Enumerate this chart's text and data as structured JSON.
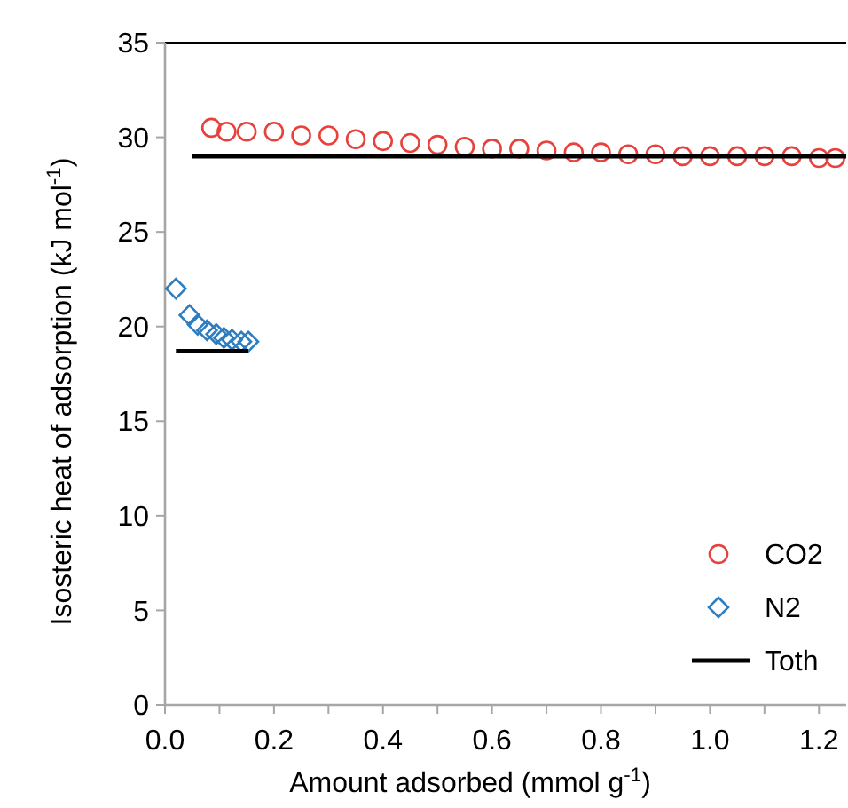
{
  "chart_data": {
    "type": "scatter",
    "xlabel": "Amount adsorbed (mmol g$^{-1}$)",
    "ylabel": "Isosteric heat of adsorption (kJ mol$^{-1}$)",
    "xlim": [
      0,
      1.25
    ],
    "ylim": [
      0,
      35
    ],
    "xticks": [
      {
        "value": 0,
        "label": "0.0"
      },
      {
        "value": 0.1,
        "label": null
      },
      {
        "value": 0.2,
        "label": "0.2"
      },
      {
        "value": 0.3,
        "label": null
      },
      {
        "value": 0.4,
        "label": "0.4"
      },
      {
        "value": 0.5,
        "label": null
      },
      {
        "value": 0.6,
        "label": "0.6"
      },
      {
        "value": 0.7,
        "label": null
      },
      {
        "value": 0.8,
        "label": "0.8"
      },
      {
        "value": 0.9,
        "label": null
      },
      {
        "value": 1.0,
        "label": "1.0"
      },
      {
        "value": 1.1,
        "label": null
      },
      {
        "value": 1.2,
        "label": "1.2"
      }
    ],
    "yticks": [
      0,
      5,
      10,
      15,
      20,
      25,
      30,
      35
    ],
    "grid": false,
    "legend": "bottom right",
    "series": [
      {
        "name": "CO2",
        "marker": "circle",
        "color": "#e8413c",
        "x": [
          0.085,
          0.113,
          0.15,
          0.2,
          0.25,
          0.3,
          0.35,
          0.4,
          0.45,
          0.5,
          0.55,
          0.6,
          0.65,
          0.7,
          0.75,
          0.8,
          0.85,
          0.9,
          0.95,
          1.0,
          1.05,
          1.1,
          1.15,
          1.2,
          1.23
        ],
        "values": [
          30.5,
          30.3,
          30.3,
          30.3,
          30.1,
          30.1,
          29.9,
          29.8,
          29.7,
          29.6,
          29.5,
          29.4,
          29.4,
          29.3,
          29.2,
          29.2,
          29.1,
          29.1,
          29.0,
          29.0,
          29.0,
          29.0,
          29.0,
          28.9,
          28.9
        ]
      },
      {
        "name": "N2",
        "marker": "diamond",
        "color": "#2e7dc1",
        "x": [
          0.02,
          0.045,
          0.06,
          0.077,
          0.094,
          0.108,
          0.123,
          0.14,
          0.153
        ],
        "values": [
          22.0,
          20.6,
          20.1,
          19.8,
          19.6,
          19.4,
          19.3,
          19.2,
          19.2
        ]
      },
      {
        "name": "Toth",
        "type": "line",
        "marker": "none",
        "line_style": "solid",
        "color": "#000000",
        "x": [
          0.05,
          1.25
        ],
        "values": [
          29.0,
          29.0
        ]
      },
      {
        "type": "line",
        "marker": "none",
        "line_style": "solid",
        "color": "#000000",
        "x": [
          0.02,
          0.153
        ],
        "values": [
          18.7,
          18.7
        ]
      }
    ]
  }
}
